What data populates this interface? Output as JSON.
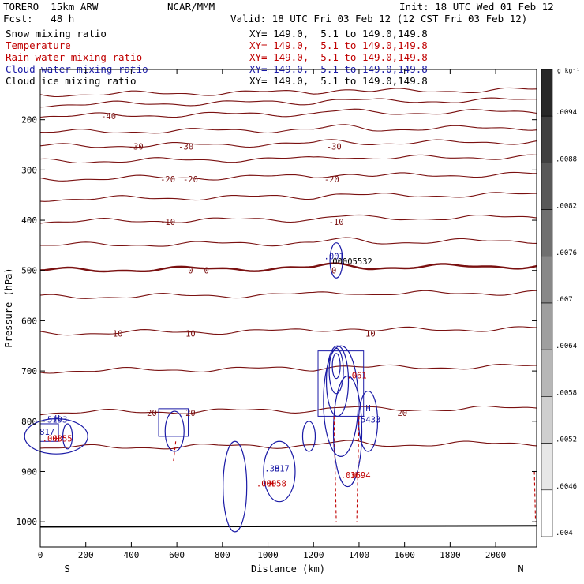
{
  "header": {
    "model": "TORERO  15km ARW",
    "org": "NCAR/MMM",
    "init": "Init: 18 UTC Wed 01 Feb 12",
    "fcst": "Fcst:   48 h",
    "valid": "Valid: 18 UTC Fri 03 Feb 12 (12 CST Fri 03 Feb 12)"
  },
  "fields": [
    {
      "name": "Snow mixing ratio",
      "xy": "XY= 149.0,  5.1 to 149.0,149.8",
      "color": "#000000"
    },
    {
      "name": "Temperature",
      "xy": "XY= 149.0,  5.1 to 149.0,149.8",
      "color": "#c00000"
    },
    {
      "name": "Rain water mixing ratio",
      "xy": "XY= 149.0,  5.1 to 149.0,149.8",
      "color": "#c00000"
    },
    {
      "name": "Cloud water mixing ratio",
      "xy": "XY= 149.0,  5.1 to 149.0,149.8",
      "color": "#1a1aa6"
    },
    {
      "name": "Cloud ice mixing ratio",
      "xy": "XY= 149.0,  5.1 to 149.0,149.8",
      "color": "#000000"
    }
  ],
  "chart_data": {
    "type": "contour",
    "xlabel": "Distance (km)",
    "ylabel": "Pressure (hPa)",
    "xlim": [
      0,
      2180
    ],
    "ylim": [
      1050,
      100
    ],
    "x_ticks": [
      0,
      200,
      400,
      600,
      800,
      1000,
      1200,
      1400,
      1600,
      1800,
      2000
    ],
    "y_ticks": [
      200,
      300,
      400,
      500,
      600,
      700,
      800,
      900,
      1000
    ],
    "end_labels": {
      "left": "S",
      "right": "N"
    },
    "temperature_isotherms": [
      {
        "value": -50,
        "p": 150
      },
      {
        "value": -45,
        "p": 170
      },
      {
        "value": -40,
        "p": 193
      },
      {
        "value": -35,
        "p": 225
      },
      {
        "value": -30,
        "p": 253
      },
      {
        "value": -25,
        "p": 283
      },
      {
        "value": -20,
        "p": 318
      },
      {
        "value": -15,
        "p": 358
      },
      {
        "value": -10,
        "p": 403
      },
      {
        "value": -5,
        "p": 450
      },
      {
        "value": 0,
        "p": 500
      },
      {
        "value": 5,
        "p": 553
      },
      {
        "value": 10,
        "p": 625
      },
      {
        "value": 15,
        "p": 700
      },
      {
        "value": 20,
        "p": 783
      },
      {
        "value": 25,
        "p": 853
      }
    ],
    "temperature_labels": [
      {
        "text": "-40",
        "x": 300,
        "p": 193
      },
      {
        "text": "-30",
        "x": 420,
        "p": 253
      },
      {
        "text": "-30",
        "x": 640,
        "p": 253
      },
      {
        "text": "-30",
        "x": 1290,
        "p": 253
      },
      {
        "text": "-20",
        "x": 560,
        "p": 318
      },
      {
        "text": "-20",
        "x": 660,
        "p": 318
      },
      {
        "text": "-20",
        "x": 1280,
        "p": 318
      },
      {
        "text": "-10",
        "x": 560,
        "p": 403
      },
      {
        "text": "-10",
        "x": 1300,
        "p": 403
      },
      {
        "text": "0",
        "x": 660,
        "p": 500
      },
      {
        "text": "0",
        "x": 730,
        "p": 500
      },
      {
        "text": "0",
        "x": 1290,
        "p": 500
      },
      {
        "text": "10",
        "x": 340,
        "p": 625
      },
      {
        "text": "10",
        "x": 660,
        "p": 625
      },
      {
        "text": "10",
        "x": 1450,
        "p": 625
      },
      {
        "text": "20",
        "x": 490,
        "p": 783
      },
      {
        "text": "20",
        "x": 660,
        "p": 783
      },
      {
        "text": "20",
        "x": 1590,
        "p": 783
      }
    ],
    "maxima_labels": [
      {
        "text": "H",
        "x": 75,
        "p": 800,
        "color": "#1a1aa6"
      },
      {
        "text": "5193",
        "x": 75,
        "p": 803,
        "color": "#1a1aa6"
      },
      {
        "text": "H",
        "x": 75,
        "p": 840,
        "color": "#c00000"
      },
      {
        "text": ".00355",
        "x": 75,
        "p": 840,
        "color": "#c00000"
      },
      {
        "text": "H",
        "x": 1040,
        "p": 900,
        "color": "#1a1aa6"
      },
      {
        "text": ".3817",
        "x": 1040,
        "p": 900,
        "color": "#1a1aa6"
      },
      {
        "text": "H",
        "x": 1015,
        "p": 930,
        "color": "#c00000"
      },
      {
        "text": ".00058",
        "x": 1015,
        "p": 930,
        "color": "#c00000"
      },
      {
        "text": "H",
        "x": 1440,
        "p": 780,
        "color": "#1a1aa6"
      },
      {
        "text": ".5433",
        "x": 1440,
        "p": 803,
        "color": "#1a1aa6"
      },
      {
        "text": ".061",
        "x": 1390,
        "p": 715,
        "color": "#c00000"
      },
      {
        "text": "H",
        "x": 1380,
        "p": 913,
        "color": "#c00000"
      },
      {
        "text": ".03694",
        "x": 1385,
        "p": 913,
        "color": "#c00000"
      },
      {
        "text": ".001",
        "x": 1290,
        "p": 478,
        "color": "#1a1aa6"
      },
      {
        "text": ".00005532",
        "x": 1360,
        "p": 488,
        "color": "#000000"
      },
      {
        "text": "817",
        "x": 30,
        "p": 827,
        "color": "#1a1aa6"
      }
    ],
    "colorbar": {
      "unit": "g kg⁻¹",
      "ticks": [
        ".0094",
        ".0088",
        ".0082",
        ".0076",
        ".007",
        ".0064",
        ".0058",
        ".0052",
        ".0046",
        ".004"
      ]
    }
  }
}
